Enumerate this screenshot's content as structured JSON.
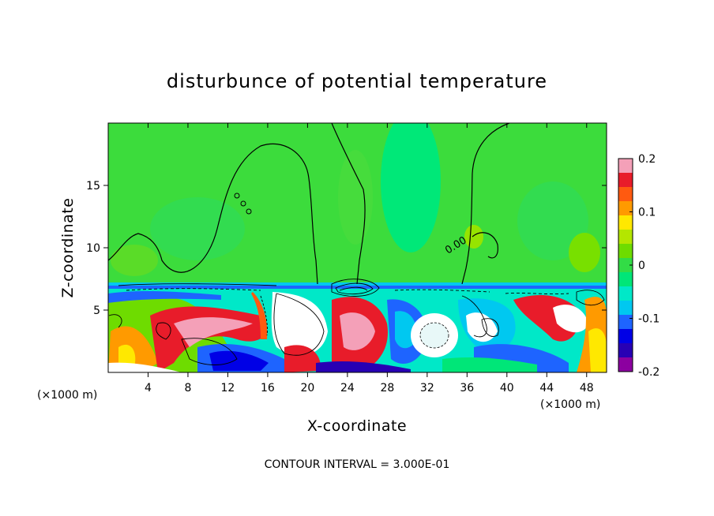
{
  "chart_data": {
    "type": "heatmap",
    "title": "disturbunce of potential temperature",
    "xlabel": "X-coordinate",
    "ylabel": "Z-coordinate",
    "x_unit_left": "(×1000 m)",
    "x_unit_right": "(×1000 m)",
    "xlim": [
      0,
      50
    ],
    "ylim": [
      0,
      20
    ],
    "xticks": [
      4,
      8,
      12,
      16,
      20,
      24,
      28,
      32,
      36,
      40,
      44,
      48
    ],
    "yticks": [
      5,
      10,
      15
    ],
    "colorbar": {
      "ticks": [
        "0.2",
        "0.1",
        "0",
        "-0.1",
        "-0.2"
      ],
      "range": [
        -0.2,
        0.2
      ],
      "colors": [
        "#f4a0b8",
        "#e81c2a",
        "#ff5a10",
        "#ff9a00",
        "#ffe800",
        "#b4e600",
        "#6edc00",
        "#32dc46",
        "#00e678",
        "#00e8c8",
        "#00c8f0",
        "#1e64ff",
        "#0000e6",
        "#2800b4",
        "#8c00a0"
      ]
    },
    "contour_label": "0.00",
    "footnote": "CONTOUR INTERVAL = 3.000E-01"
  }
}
